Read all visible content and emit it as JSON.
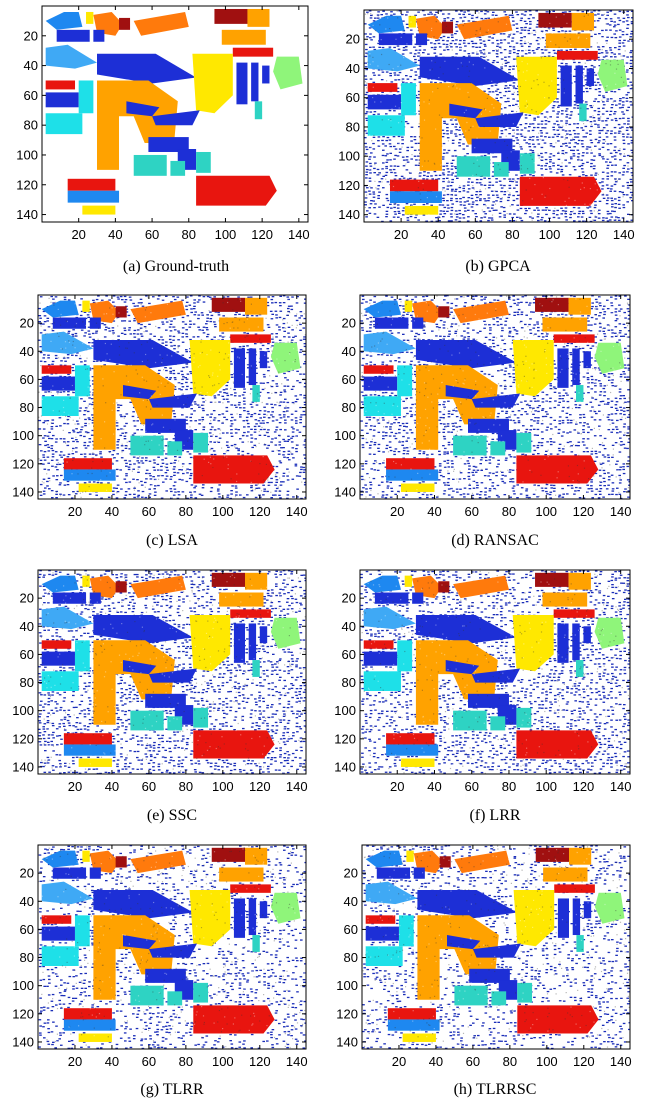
{
  "figure": {
    "panels": [
      {
        "id": "a",
        "caption": "(a)  Ground-truth",
        "style": "truth"
      },
      {
        "id": "b",
        "caption": "(b)  GPCA",
        "style": "noisy-heavy"
      },
      {
        "id": "c",
        "caption": "(c)  LSA",
        "style": "noisy"
      },
      {
        "id": "d",
        "caption": "(d)  RANSAC",
        "style": "noisy"
      },
      {
        "id": "e",
        "caption": "(e)  SSC",
        "style": "noisy"
      },
      {
        "id": "f",
        "caption": "(f)  LRR",
        "style": "noisy"
      },
      {
        "id": "g",
        "caption": "(g)  TLRR",
        "style": "noisy-light"
      },
      {
        "id": "h",
        "caption": "(h)  TLRRSC",
        "style": "noisy-light"
      }
    ]
  },
  "chart_data": {
    "type": "heatmap",
    "x_ticks": [
      20,
      40,
      60,
      80,
      100,
      120,
      140
    ],
    "y_ticks": [
      20,
      40,
      60,
      80,
      100,
      120,
      140
    ],
    "xlim": [
      0,
      145
    ],
    "ylim": [
      0,
      145
    ],
    "colors": {
      "background": "#ffffff",
      "noise": "#1a2db8",
      "blue": "#1d2fd6",
      "azure": "#1e88f0",
      "light_blue": "#3fa9f5",
      "cyan": "#1ee0e8",
      "teal": "#2ed3c3",
      "green": "#8ff57a",
      "yellow": "#ffe800",
      "orange": "#ffa200",
      "dark_orange": "#ff7a0c",
      "red": "#e8150f",
      "dark_red": "#a01010"
    }
  }
}
